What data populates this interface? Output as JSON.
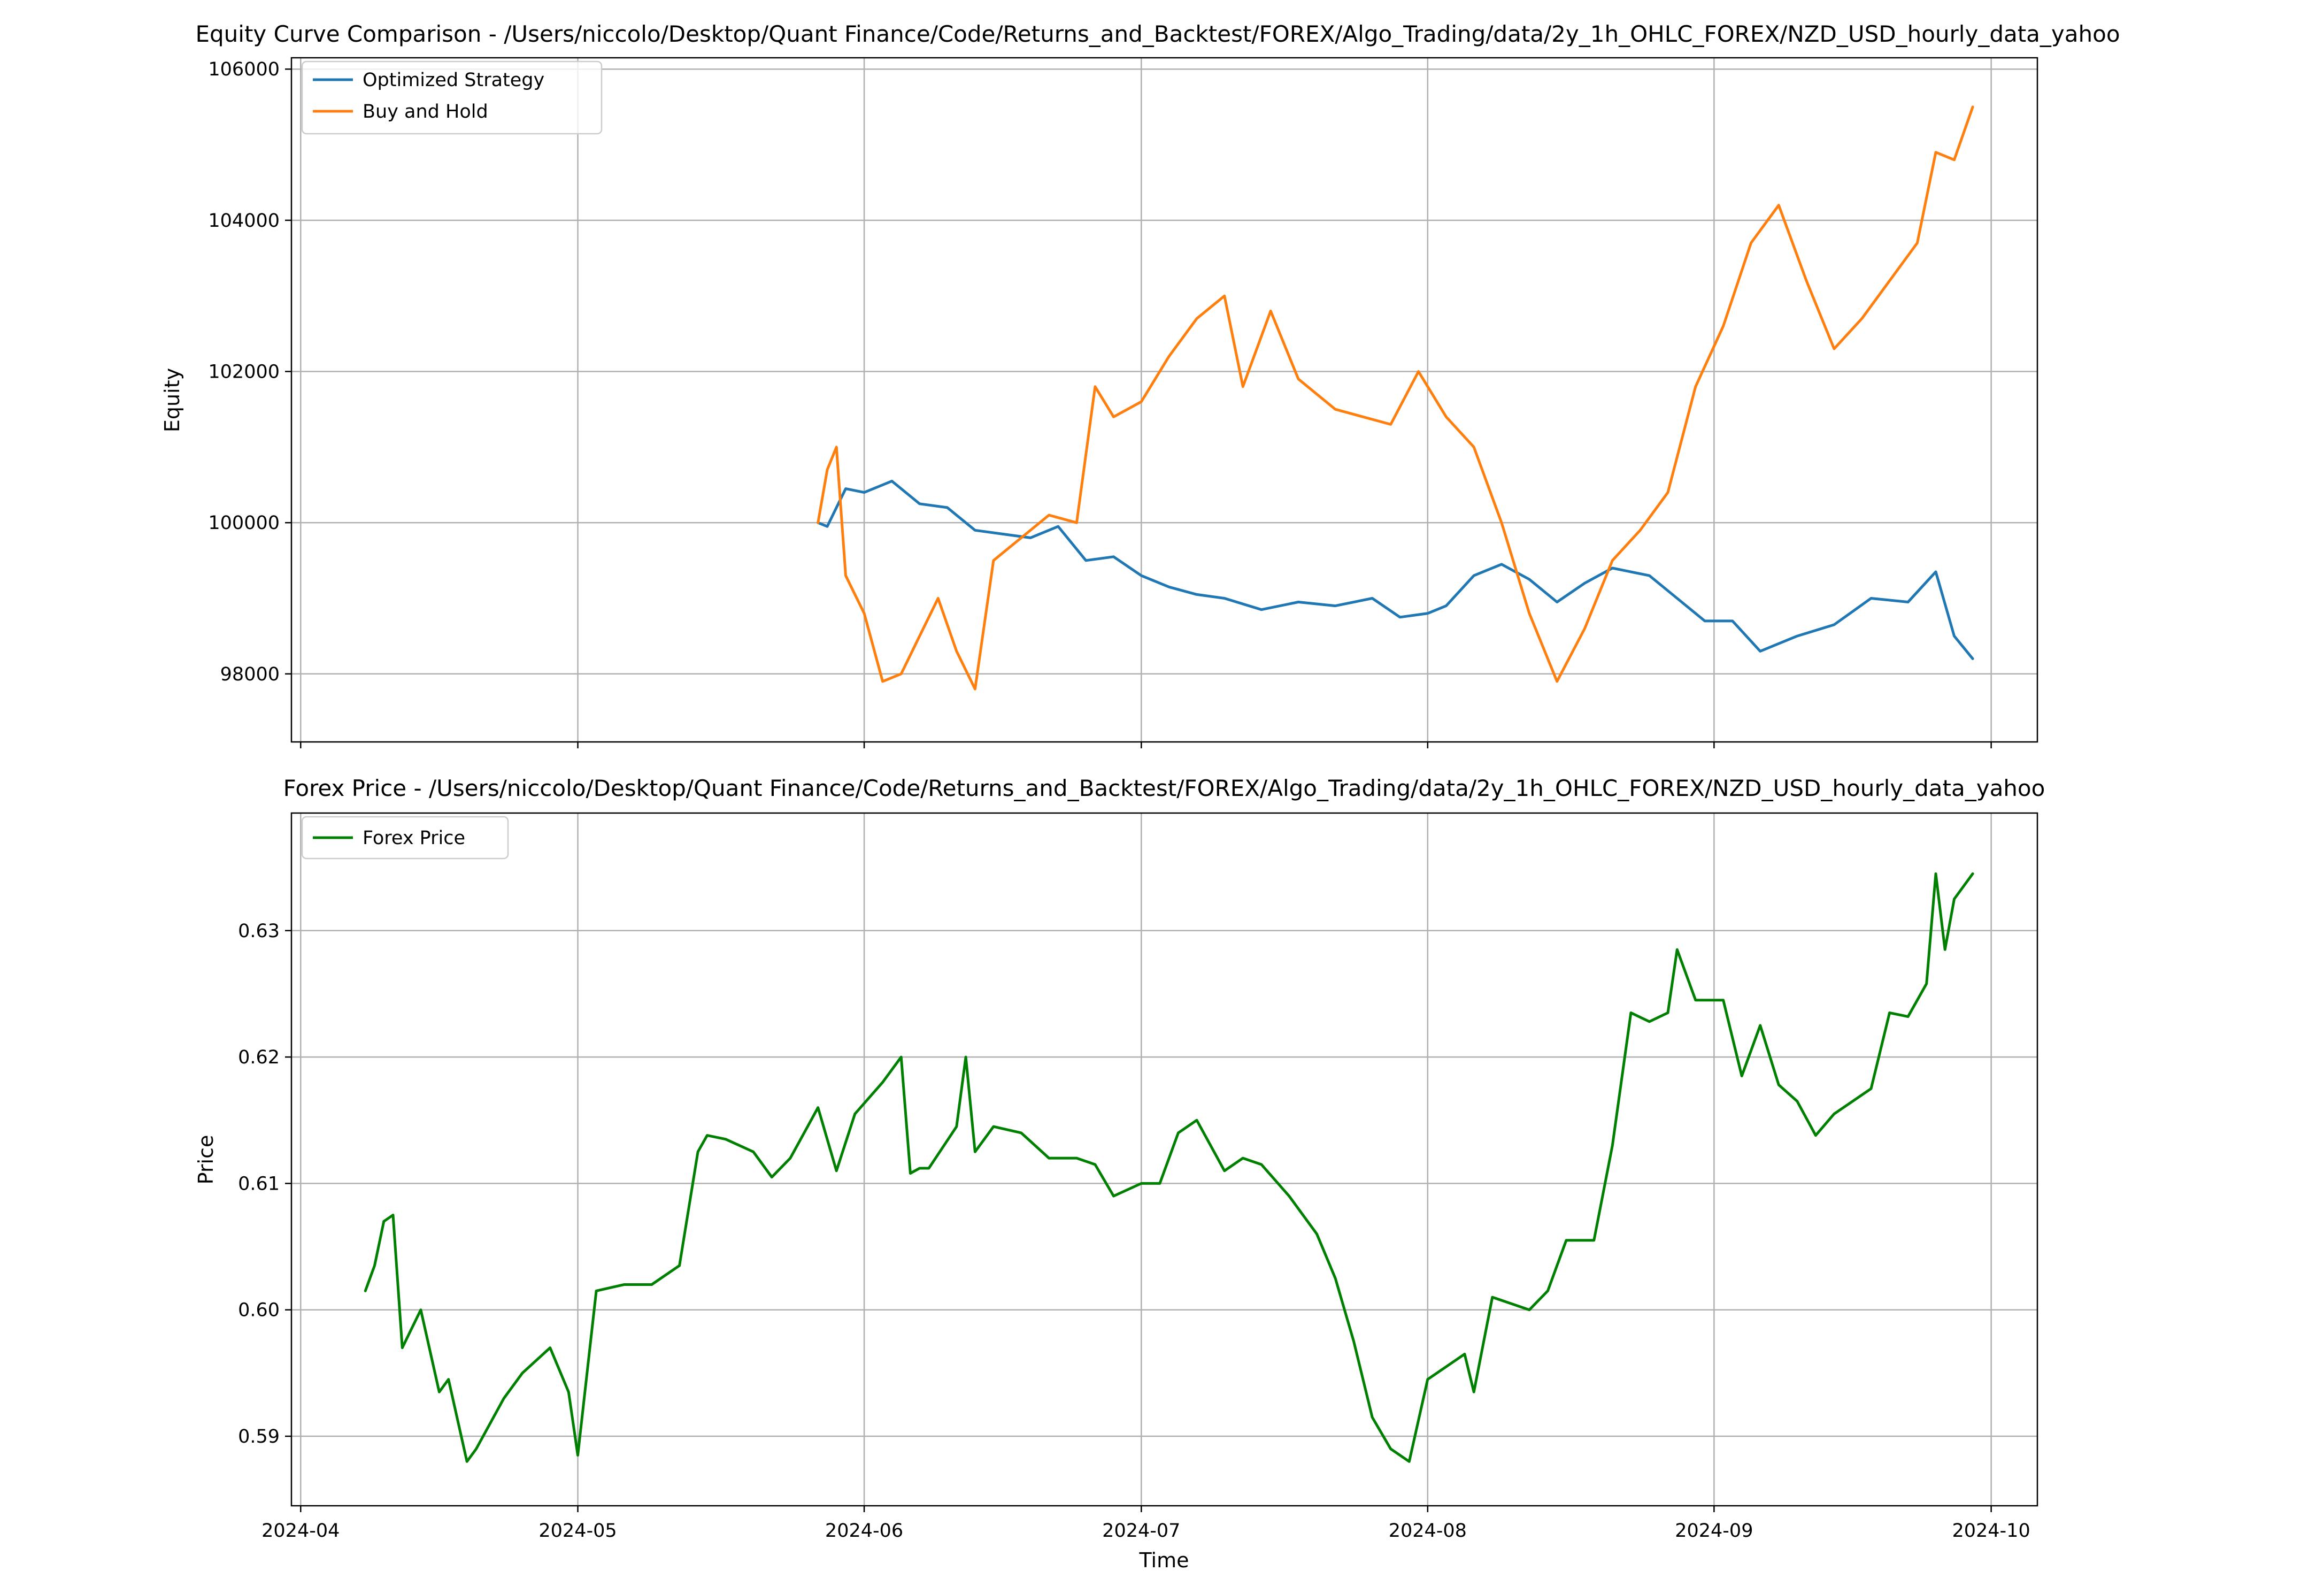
{
  "figure": {
    "top": {
      "title": "Equity Curve Comparison - /Users/niccolo/Desktop/Quant Finance/Code/Returns_and_Backtest/FOREX/Algo_Trading/data/2y_1h_OHLC_FOREX/NZD_USD_hourly_data_yahoo",
      "ylabel": "Equity"
    },
    "bottom": {
      "title": "Forex Price - /Users/niccolo/Desktop/Quant Finance/Code/Returns_and_Backtest/FOREX/Algo_Trading/data/2y_1h_OHLC_FOREX/NZD_USD_hourly_data_yahoo",
      "ylabel": "Price",
      "xlabel": "Time"
    }
  },
  "chart_data": [
    {
      "type": "line",
      "title": "Equity Curve Comparison - /Users/niccolo/Desktop/Quant Finance/Code/Returns_and_Backtest/FOREX/Algo_Trading/data/2y_1h_OHLC_FOREX/NZD_USD_hourly_data_yahoo",
      "xlabel": "",
      "ylabel": "Equity",
      "xlim": [
        "2024-03-31",
        "2024-10-06"
      ],
      "ylim": [
        97100,
        106150
      ],
      "xticks": [
        "2024-04-01",
        "2024-05-01",
        "2024-06-01",
        "2024-07-01",
        "2024-08-01",
        "2024-09-01",
        "2024-10-01"
      ],
      "xtick_labels": [
        "2024-04",
        "2024-05",
        "2024-06",
        "2024-07",
        "2024-08",
        "2024-09",
        "2024-10"
      ],
      "yticks": [
        98000,
        100000,
        102000,
        104000,
        106000
      ],
      "ytick_labels": [
        "98000",
        "100000",
        "102000",
        "104000",
        "106000"
      ],
      "grid": true,
      "legend": "upper-left",
      "series": [
        {
          "name": "Optimized Strategy",
          "color": "#1f77b4",
          "x": [
            "2024-05-27",
            "2024-05-28",
            "2024-05-29",
            "2024-05-30",
            "2024-06-01",
            "2024-06-04",
            "2024-06-07",
            "2024-06-10",
            "2024-06-13",
            "2024-06-16",
            "2024-06-19",
            "2024-06-22",
            "2024-06-25",
            "2024-06-28",
            "2024-07-01",
            "2024-07-04",
            "2024-07-07",
            "2024-07-10",
            "2024-07-14",
            "2024-07-18",
            "2024-07-22",
            "2024-07-26",
            "2024-07-29",
            "2024-08-01",
            "2024-08-03",
            "2024-08-06",
            "2024-08-09",
            "2024-08-12",
            "2024-08-15",
            "2024-08-18",
            "2024-08-21",
            "2024-08-25",
            "2024-08-28",
            "2024-08-31",
            "2024-09-03",
            "2024-09-06",
            "2024-09-10",
            "2024-09-14",
            "2024-09-18",
            "2024-09-22",
            "2024-09-25",
            "2024-09-27",
            "2024-09-29"
          ],
          "y": [
            100000,
            99950,
            100200,
            100450,
            100400,
            100550,
            100250,
            100200,
            99900,
            99850,
            99800,
            99950,
            99500,
            99550,
            99300,
            99150,
            99050,
            99000,
            98850,
            98950,
            98900,
            99000,
            98750,
            98800,
            98900,
            99300,
            99450,
            99250,
            98950,
            99200,
            99400,
            99300,
            99000,
            98700,
            98700,
            98300,
            98500,
            98650,
            99000,
            98950,
            99350,
            98500,
            98200
          ]
        },
        {
          "name": "Buy and Hold",
          "color": "#ff7f0e",
          "x": [
            "2024-05-27",
            "2024-05-28",
            "2024-05-29",
            "2024-05-30",
            "2024-06-01",
            "2024-06-03",
            "2024-06-05",
            "2024-06-07",
            "2024-06-09",
            "2024-06-11",
            "2024-06-13",
            "2024-06-15",
            "2024-06-18",
            "2024-06-21",
            "2024-06-24",
            "2024-06-26",
            "2024-06-28",
            "2024-07-01",
            "2024-07-04",
            "2024-07-07",
            "2024-07-10",
            "2024-07-12",
            "2024-07-15",
            "2024-07-18",
            "2024-07-22",
            "2024-07-25",
            "2024-07-28",
            "2024-07-31",
            "2024-08-03",
            "2024-08-06",
            "2024-08-09",
            "2024-08-12",
            "2024-08-15",
            "2024-08-18",
            "2024-08-21",
            "2024-08-24",
            "2024-08-27",
            "2024-08-30",
            "2024-09-02",
            "2024-09-05",
            "2024-09-08",
            "2024-09-11",
            "2024-09-14",
            "2024-09-17",
            "2024-09-20",
            "2024-09-23",
            "2024-09-25",
            "2024-09-27",
            "2024-09-29"
          ],
          "y": [
            100000,
            100700,
            101000,
            99300,
            98800,
            97900,
            98000,
            98500,
            99000,
            98300,
            97800,
            99500,
            99800,
            100100,
            100000,
            101800,
            101400,
            101600,
            102200,
            102700,
            103000,
            101800,
            102800,
            101900,
            101500,
            101400,
            101300,
            102000,
            101400,
            101000,
            100000,
            98800,
            97900,
            98600,
            99500,
            99900,
            100400,
            101800,
            102600,
            103700,
            104200,
            103200,
            102300,
            102700,
            103200,
            103700,
            104900,
            104800,
            105500
          ]
        }
      ]
    },
    {
      "type": "line",
      "title": "Forex Price - /Users/niccolo/Desktop/Quant Finance/Code/Returns_and_Backtest/FOREX/Algo_Trading/data/2y_1h_OHLC_FOREX/NZD_USD_hourly_data_yahoo",
      "xlabel": "Time",
      "ylabel": "Price",
      "xlim": [
        "2024-03-31",
        "2024-10-06"
      ],
      "ylim": [
        0.5845,
        0.6393
      ],
      "xticks": [
        "2024-04-01",
        "2024-05-01",
        "2024-06-01",
        "2024-07-01",
        "2024-08-01",
        "2024-09-01",
        "2024-10-01"
      ],
      "xtick_labels": [
        "2024-04",
        "2024-05",
        "2024-06",
        "2024-07",
        "2024-08",
        "2024-09",
        "2024-10"
      ],
      "yticks": [
        0.59,
        0.6,
        0.61,
        0.62,
        0.63
      ],
      "ytick_labels": [
        "0.59",
        "0.60",
        "0.61",
        "0.62",
        "0.63"
      ],
      "grid": true,
      "legend": "upper-left",
      "series": [
        {
          "name": "Forex Price",
          "color": "#008000",
          "x": [
            "2024-04-08",
            "2024-04-09",
            "2024-04-10",
            "2024-04-11",
            "2024-04-12",
            "2024-04-14",
            "2024-04-16",
            "2024-04-17",
            "2024-04-19",
            "2024-04-20",
            "2024-04-23",
            "2024-04-25",
            "2024-04-28",
            "2024-04-30",
            "2024-05-01",
            "2024-05-03",
            "2024-05-06",
            "2024-05-09",
            "2024-05-12",
            "2024-05-14",
            "2024-05-15",
            "2024-05-17",
            "2024-05-20",
            "2024-05-22",
            "2024-05-24",
            "2024-05-27",
            "2024-05-29",
            "2024-05-31",
            "2024-06-03",
            "2024-06-05",
            "2024-06-06",
            "2024-06-07",
            "2024-06-08",
            "2024-06-11",
            "2024-06-12",
            "2024-06-13",
            "2024-06-15",
            "2024-06-18",
            "2024-06-21",
            "2024-06-24",
            "2024-06-26",
            "2024-06-28",
            "2024-07-01",
            "2024-07-03",
            "2024-07-05",
            "2024-07-07",
            "2024-07-10",
            "2024-07-12",
            "2024-07-14",
            "2024-07-17",
            "2024-07-20",
            "2024-07-22",
            "2024-07-24",
            "2024-07-26",
            "2024-07-28",
            "2024-07-30",
            "2024-08-01",
            "2024-08-03",
            "2024-08-05",
            "2024-08-06",
            "2024-08-08",
            "2024-08-10",
            "2024-08-12",
            "2024-08-14",
            "2024-08-16",
            "2024-08-19",
            "2024-08-21",
            "2024-08-23",
            "2024-08-25",
            "2024-08-27",
            "2024-08-28",
            "2024-08-30",
            "2024-09-02",
            "2024-09-04",
            "2024-09-06",
            "2024-09-08",
            "2024-09-10",
            "2024-09-12",
            "2024-09-14",
            "2024-09-16",
            "2024-09-18",
            "2024-09-20",
            "2024-09-22",
            "2024-09-24",
            "2024-09-25",
            "2024-09-26",
            "2024-09-27",
            "2024-09-29"
          ],
          "y": [
            0.6015,
            0.6035,
            0.607,
            0.6075,
            0.597,
            0.6,
            0.5935,
            0.5945,
            0.588,
            0.589,
            0.593,
            0.595,
            0.597,
            0.5935,
            0.5885,
            0.6015,
            0.602,
            0.602,
            0.6035,
            0.6125,
            0.6138,
            0.6135,
            0.6125,
            0.6105,
            0.612,
            0.616,
            0.611,
            0.6155,
            0.618,
            0.62,
            0.6108,
            0.6112,
            0.6112,
            0.6145,
            0.62,
            0.6125,
            0.6145,
            0.614,
            0.612,
            0.612,
            0.6115,
            0.609,
            0.61,
            0.61,
            0.614,
            0.615,
            0.611,
            0.612,
            0.6115,
            0.609,
            0.606,
            0.6025,
            0.5975,
            0.5915,
            0.589,
            0.588,
            0.5945,
            0.5955,
            0.5965,
            0.5935,
            0.601,
            0.6005,
            0.6,
            0.6015,
            0.6055,
            0.6055,
            0.613,
            0.6235,
            0.6228,
            0.6235,
            0.6285,
            0.6245,
            0.6245,
            0.6185,
            0.6225,
            0.6178,
            0.6165,
            0.6138,
            0.6155,
            0.6165,
            0.6175,
            0.6235,
            0.6232,
            0.6258,
            0.6345,
            0.6285,
            0.6325,
            0.6345
          ]
        }
      ]
    }
  ]
}
